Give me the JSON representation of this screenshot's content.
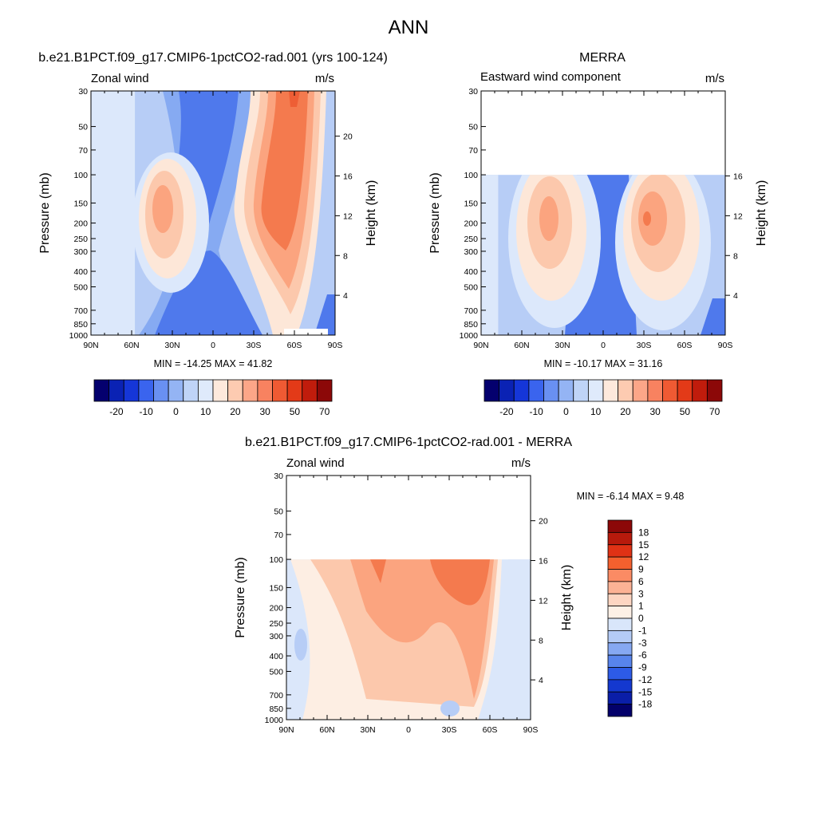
{
  "figure_title": "ANN",
  "chart_data": [
    {
      "type": "contour",
      "panel_title": "b.e21.B1PCT.f09_g17.CMIP6-1pctCO2-rad.001 (yrs 100-124)",
      "field_label": "Zonal wind",
      "units": "m/s",
      "ylabel": "Pressure (mb)",
      "ylabel_right": "Height (km)",
      "x_ticks": [
        "90N",
        "60N",
        "30N",
        "0",
        "30S",
        "60S",
        "90S"
      ],
      "y_ticks": [
        30,
        50,
        70,
        100,
        150,
        200,
        250,
        300,
        400,
        500,
        700,
        850,
        1000
      ],
      "height_ticks": [
        4,
        8,
        12,
        16,
        20
      ],
      "ylim": [
        30,
        1000
      ],
      "min_text": "MIN = -14.25  MAX =  41.82",
      "min": -14.25,
      "max": 41.82,
      "colorbar_labels": [
        "-20",
        "-10",
        "0",
        "10",
        "20",
        "30",
        "50",
        "70"
      ],
      "colorbar_colors": [
        "#04006e",
        "#0a22b4",
        "#1536d8",
        "#3a64ee",
        "#6990f2",
        "#94b4f4",
        "#bfd4f7",
        "#dfeafb",
        "#fde9dc",
        "#fdcbb1",
        "#fca688",
        "#f88260",
        "#ef5a33",
        "#e33a18",
        "#c01c0c",
        "#8c0808"
      ]
    },
    {
      "type": "contour",
      "panel_title": "MERRA",
      "field_label": "Eastward wind component",
      "units": "m/s",
      "ylabel": "Pressure (mb)",
      "ylabel_right": "Height (km)",
      "x_ticks": [
        "90N",
        "60N",
        "30N",
        "0",
        "30S",
        "60S",
        "90S"
      ],
      "y_ticks": [
        30,
        50,
        70,
        100,
        150,
        200,
        250,
        300,
        400,
        500,
        700,
        850,
        1000
      ],
      "height_ticks": [
        4,
        8,
        12,
        16
      ],
      "ylim": [
        30,
        1000
      ],
      "data_top_pressure": 100,
      "min_text": "MIN = -10.17  MAX =  31.16",
      "min": -10.17,
      "max": 31.16,
      "colorbar_labels": [
        "-20",
        "-10",
        "0",
        "10",
        "20",
        "30",
        "50",
        "70"
      ],
      "colorbar_colors": [
        "#04006e",
        "#0a22b4",
        "#1536d8",
        "#3a64ee",
        "#6990f2",
        "#94b4f4",
        "#bfd4f7",
        "#dfeafb",
        "#fde9dc",
        "#fdcbb1",
        "#fca688",
        "#f88260",
        "#ef5a33",
        "#e33a18",
        "#c01c0c",
        "#8c0808"
      ]
    },
    {
      "type": "contour",
      "panel_title": "b.e21.B1PCT.f09_g17.CMIP6-1pctCO2-rad.001 - MERRA",
      "field_label": "Zonal wind",
      "units": "m/s",
      "ylabel": "Pressure (mb)",
      "ylabel_right": "Height (km)",
      "x_ticks": [
        "90N",
        "60N",
        "30N",
        "0",
        "30S",
        "60S",
        "90S"
      ],
      "y_ticks": [
        30,
        50,
        70,
        100,
        150,
        200,
        250,
        300,
        400,
        500,
        700,
        850,
        1000
      ],
      "height_ticks": [
        4,
        8,
        12,
        16,
        20
      ],
      "ylim": [
        30,
        1000
      ],
      "data_top_pressure": 100,
      "min_text": "MIN =  -6.14  MAX =   9.48",
      "min": -6.14,
      "max": 9.48,
      "colorbar_labels": [
        "18",
        "15",
        "12",
        "9",
        "6",
        "3",
        "1",
        "0",
        "-1",
        "-3",
        "-6",
        "-9",
        "-12",
        "-15",
        "-18"
      ],
      "colorbar_colors": [
        "#8c0808",
        "#b81a0c",
        "#e03215",
        "#f4602e",
        "#fb8b64",
        "#fcb295",
        "#fdd5c2",
        "#fdf0e6",
        "#d9e6fa",
        "#b4cbf6",
        "#86a8f2",
        "#5884ec",
        "#2d5be6",
        "#1438cf",
        "#0a1ea8",
        "#03006a"
      ]
    }
  ],
  "notes_colors": {
    "strong_east": "#f47c52",
    "weak_east": "#fcd3bf",
    "weak_west": "#cfdff9",
    "strong_west": "#6f97ef"
  }
}
